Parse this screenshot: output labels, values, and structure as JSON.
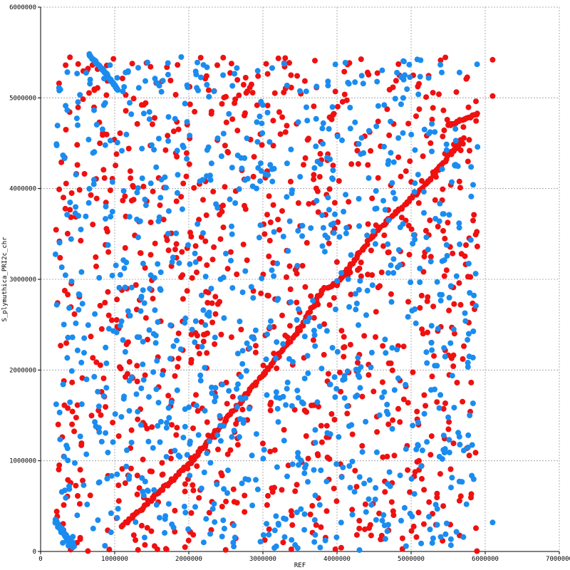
{
  "chart_data": {
    "type": "scatter",
    "xlabel": "REF",
    "ylabel": "S_plymuthica_PRI2c_chr",
    "xlim": [
      0,
      7000000
    ],
    "ylim": [
      0,
      6000000
    ],
    "x_ticks": [
      "0",
      "1000000",
      "2000000",
      "3000000",
      "4000000",
      "5000000",
      "6000000",
      "7000000"
    ],
    "y_ticks": [
      "0",
      "1000000",
      "2000000",
      "3000000",
      "4000000",
      "5000000",
      "6000000"
    ],
    "grid": true,
    "colors": {
      "forward": "#ef1010",
      "reverse": "#1a8cf0",
      "grid": "#999999"
    },
    "series": [
      {
        "strand": "forward",
        "color": "#ef1010",
        "diagonal": [
          [
            1100000,
            280000
          ],
          [
            2000000,
            950000
          ],
          [
            2900000,
            1850000
          ],
          [
            3500000,
            2450000
          ],
          [
            3800000,
            2880000
          ],
          [
            4000000,
            2950000
          ],
          [
            4500000,
            3500000
          ],
          [
            5200000,
            4050000
          ],
          [
            5700000,
            4550000
          ]
        ],
        "upper_tail": [
          [
            5500000,
            4700000
          ],
          [
            5900000,
            4820000
          ]
        ],
        "outliers": [
          [
            6100000,
            5420000
          ],
          [
            6100000,
            5020000
          ]
        ],
        "scattered_count": 950,
        "scattered_range": {
          "x": [
            200000,
            5900000
          ],
          "y": [
            0,
            5450000
          ]
        }
      },
      {
        "strand": "reverse",
        "color": "#1a8cf0",
        "top_left_arc": [
          [
            650000,
            5480000
          ],
          [
            850000,
            5300000
          ],
          [
            1050000,
            5080000
          ]
        ],
        "bottom_left_cluster": [
          [
            200000,
            350000
          ],
          [
            320000,
            180000
          ],
          [
            450000,
            50000
          ]
        ],
        "outliers": [
          [
            6100000,
            320000
          ]
        ],
        "scattered_count": 950,
        "scattered_range": {
          "x": [
            200000,
            5900000
          ],
          "y": [
            0,
            5450000
          ]
        }
      }
    ]
  }
}
